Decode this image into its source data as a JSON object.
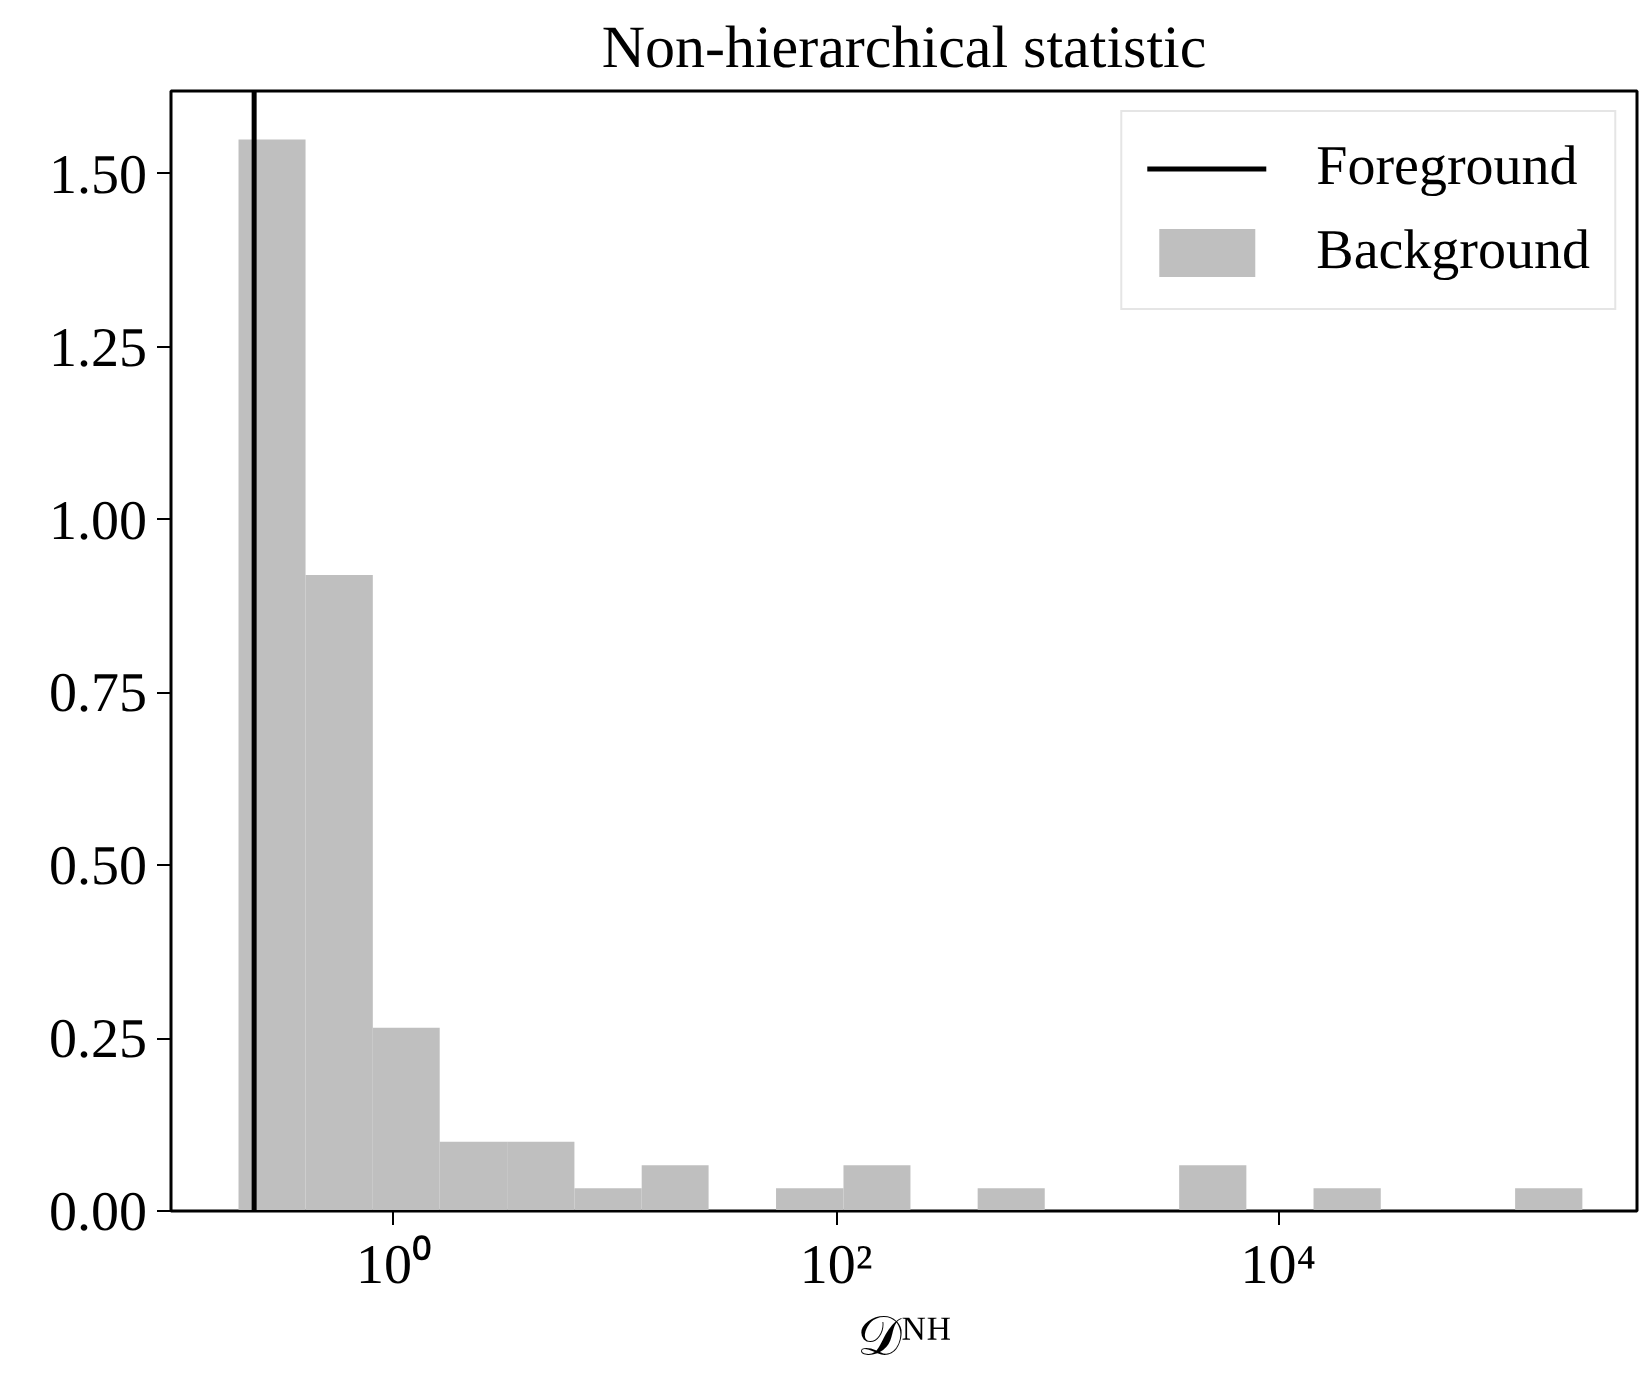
{
  "chart_data": {
    "type": "histogram",
    "title": "Non-hierarchical statistic",
    "xlabel": "𝒟ᴺᴴ",
    "bins": [
      0.198,
      0.398,
      0.802,
      1.61,
      3.25,
      6.55,
      13.2,
      26.5,
      53.5,
      108,
      217,
      437,
      879,
      1770,
      3565,
      7178,
      14450,
      29110,
      58610,
      118000,
      237700
    ],
    "series": [
      {
        "name": "Background",
        "color": "#bfbfbf",
        "values": [
          1.55,
          0.92,
          0.265,
          0.1,
          0.1,
          0.033,
          0.066,
          0,
          0.033,
          0.066,
          0,
          0.033,
          0,
          0,
          0.066,
          0,
          0.033,
          0,
          0,
          0.033
        ]
      }
    ],
    "ref_lines": [
      {
        "axis": "x",
        "value": 0.233,
        "label": "Foreground",
        "color": "#000000",
        "line_style": "solid"
      }
    ],
    "log": "x",
    "xlim": [
      0.098,
      420000
    ],
    "ylim": [
      0,
      1.62
    ],
    "xticks": [
      {
        "value": 1,
        "label": "10⁰"
      },
      {
        "value": 100,
        "label": "10²"
      },
      {
        "value": 10000,
        "label": "10⁴"
      }
    ],
    "yticks": [
      {
        "value": 0,
        "label": "0.00"
      },
      {
        "value": 0.25,
        "label": "0.25"
      },
      {
        "value": 0.5,
        "label": "0.50"
      },
      {
        "value": 0.75,
        "label": "0.75"
      },
      {
        "value": 1,
        "label": "1.00"
      },
      {
        "value": 1.25,
        "label": "1.25"
      },
      {
        "value": 1.5,
        "label": "1.50"
      }
    ],
    "grid": false,
    "legend": "top right"
  }
}
